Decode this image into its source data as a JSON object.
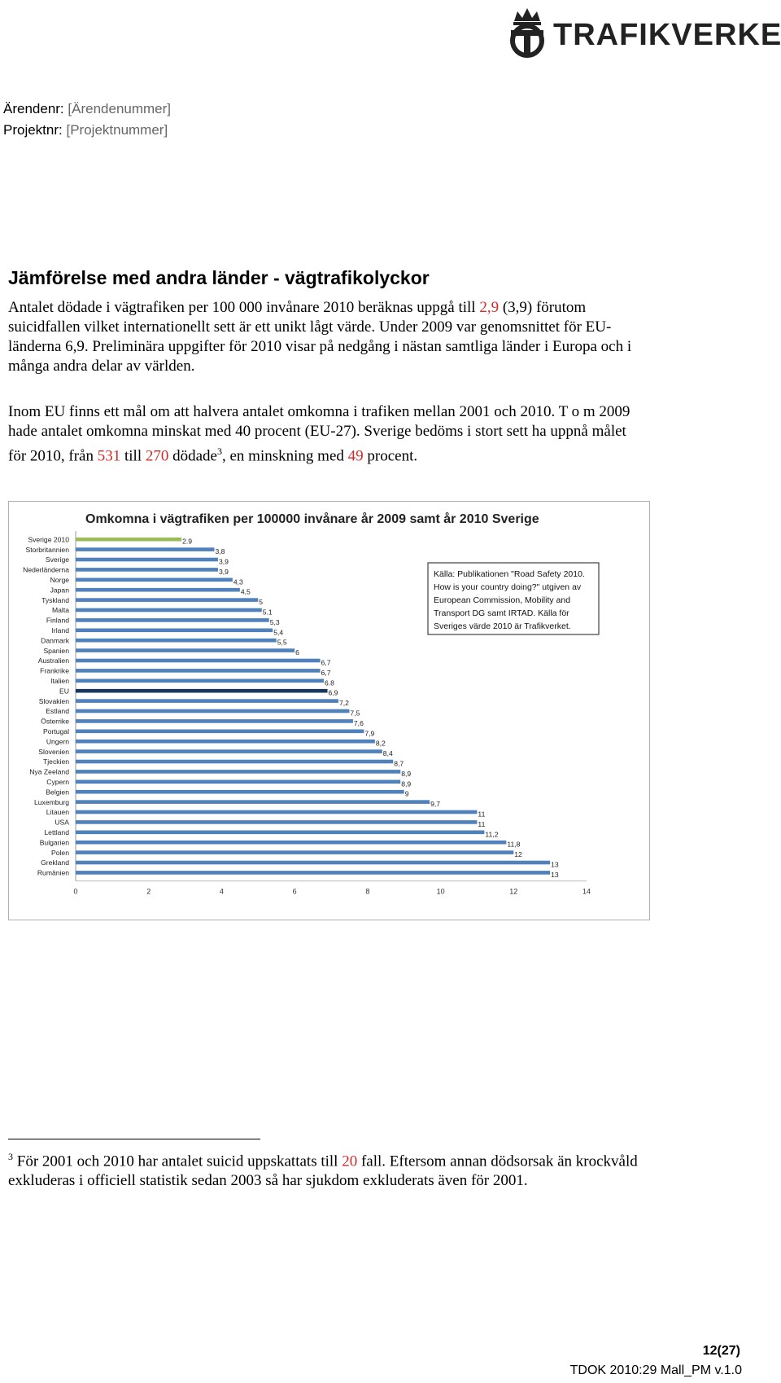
{
  "header": {
    "logo_text": "TRAFIKVERKET",
    "arendenr_label": "Ärendenr:",
    "arendenr_value": "[Ärendenummer]",
    "projektnr_label": "Projektnr:",
    "projektnr_value": "[Projektnummer]"
  },
  "section": {
    "heading": "Jämförelse med andra länder - vägtrafikolyckor",
    "p1_a": "Antalet dödade i vägtrafiken per 100 000 invånare 2010 beräknas uppgå till ",
    "p1_red": "2,9",
    "p1_b": " (3,9) förutom suicidfallen vilket internationellt sett är ett unikt lågt värde. Under 2009 var genomsnittet för EU-länderna 6,9. Preliminära uppgifter för 2010 visar på nedgång i nästan samtliga länder i Europa och i många andra delar av världen.",
    "p2_a": "Inom EU finns ett mål om att halvera antalet omkomna i trafiken mellan 2001 och 2010. T o m 2009 hade antalet omkomna minskat med 40 procent (EU-27). Sverige bedöms i stort sett ha uppnå målet för 2010, från ",
    "p2_red1": "531",
    "p2_b": " till ",
    "p2_red2": "270",
    "p2_c": " dödade",
    "p2_sup": "3",
    "p2_d": ", en minskning med ",
    "p2_red3": "49",
    "p2_e": " procent."
  },
  "chart_data": {
    "type": "bar",
    "orientation": "horizontal",
    "title": "Omkomna i vägtrafiken per 100000 invånare år 2009 samt år 2010 Sverige",
    "categories": [
      "Sverige 2010",
      "Storbritannien",
      "Sverige",
      "Nederländerna",
      "Norge",
      "Japan",
      "Tyskland",
      "Malta",
      "Finland",
      "Irland",
      "Danmark",
      "Spanien",
      "Australien",
      "Frankrike",
      "Italien",
      "EU",
      "Slovakien",
      "Estland",
      "Österrike",
      "Portugal",
      "Ungern",
      "Slovenien",
      "Tjeckien",
      "Nya Zeeland",
      "Cypern",
      "Belgien",
      "Luxemburg",
      "Litauen",
      "USA",
      "Lettland",
      "Bulgarien",
      "Polen",
      "Grekland",
      "Rumänien"
    ],
    "values": [
      2.9,
      3.8,
      3.9,
      3.9,
      4.3,
      4.5,
      5.0,
      5.1,
      5.3,
      5.4,
      5.5,
      6.0,
      6.7,
      6.7,
      6.8,
      6.9,
      7.2,
      7.5,
      7.6,
      7.9,
      8.2,
      8.4,
      8.7,
      8.9,
      8.9,
      9.0,
      9.7,
      11.0,
      11.0,
      11.2,
      11.8,
      12.0,
      13.0,
      13.0
    ],
    "value_labels": [
      "2.9",
      "3,8",
      "3,9",
      "3,9",
      "4,3",
      "4,5",
      "5",
      "5.1",
      "5,3",
      "5,4",
      "5,5",
      "6",
      "6,7",
      "6,7",
      "6.8",
      "6,9",
      "7,2",
      "7,5",
      "7,6",
      "7,9",
      "8,2",
      "8,4",
      "8,7",
      "8,9",
      "8,9",
      "9",
      "9,7",
      "11",
      "11",
      "11,2",
      "11,8",
      "12",
      "13",
      "13"
    ],
    "xlim": [
      0,
      14
    ],
    "xticks": [
      0,
      2,
      4,
      6,
      8,
      10,
      12,
      14
    ],
    "colors": {
      "default": "#4f81bd",
      "sverige_2010": "#9bbb59",
      "eu": "#17375e"
    },
    "source_box": "Källa: Publikationen \"Road Safety 2010. How is your country doing?\" utgiven av European Commission, Mobility and Transport DG samt IRTAD. Källa för Sveriges värde 2010 är Trafikverket.",
    "source_lines": [
      "Källa: Publikationen \"Road Safety 2010.",
      "How is your country doing?\" utgiven av",
      "European Commission, Mobility and",
      "Transport DG samt IRTAD. Källa för",
      "Sveriges värde 2010 är Trafikverket."
    ]
  },
  "footnote": {
    "marker": "3",
    "text_a": " För 2001 och 2010 har antalet suicid uppskattats till ",
    "red": "20",
    "text_b": " fall. Eftersom annan dödsorsak än krockvåld exkluderas i officiell statistik sedan 2003 så har sjukdom exkluderats även för 2001."
  },
  "footer": {
    "page": "12(27)",
    "doc_id": "TDOK 2010:29 Mall_PM  v.1.0"
  }
}
